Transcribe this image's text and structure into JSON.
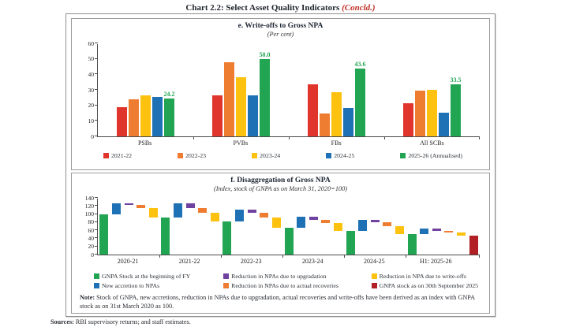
{
  "page": {
    "title": "Chart 2.2: Select Asset Quality Indicators",
    "title_suffix": "(Concld.)"
  },
  "note": {
    "label": "Note:",
    "text": " Stock of GNPA, new accretions, reduction in NPAs due to upgradation, actual recoveries and write-offs have been derived as an index with GNPA stock as on 31st March 2020 as 100."
  },
  "sources": {
    "label": "Sources:",
    "text": " RBI supervisory returns; and staff estimates."
  },
  "chart_data": [
    {
      "id": "write_offs_to_gross_npa",
      "type": "bar",
      "title": "e. Write-offs to Gross NPA",
      "subtitle": "(Per cent)",
      "categories": [
        "PSBs",
        "PVBs",
        "FBs",
        "All SCBs"
      ],
      "series": [
        {
          "name": "2021-22",
          "color": "#e0352c",
          "values": [
            19.0,
            26.5,
            33.6,
            21.5
          ]
        },
        {
          "name": "2022-23",
          "color": "#ee7d31",
          "values": [
            24.0,
            48.0,
            14.8,
            29.5
          ]
        },
        {
          "name": "2023-24",
          "color": "#fdc110",
          "values": [
            26.3,
            38.1,
            28.4,
            29.8
          ]
        },
        {
          "name": "2024-25",
          "color": "#1f71b5",
          "values": [
            25.4,
            26.7,
            18.1,
            15.2
          ]
        },
        {
          "name": "2025-26 (Annualised)",
          "color": "#22a552",
          "values": [
            24.2,
            50.0,
            43.6,
            33.5
          ],
          "show_labels": true,
          "labels": [
            "24.2",
            "50.0",
            "43.6",
            "33.5"
          ]
        }
      ],
      "ylim": [
        0,
        60
      ],
      "yticks": [
        0,
        10,
        20,
        30,
        40,
        50,
        60
      ],
      "grid": false,
      "legend_position": "bottom"
    },
    {
      "id": "disaggregation_of_gross_npa",
      "type": "waterfall",
      "title": "f. Disaggregation of Gross NPA",
      "subtitle": "(Index, stock of GNPA as on March 31, 2020=100)",
      "categories": [
        "2020-21",
        "2021-22",
        "2022-23",
        "2023-24",
        "2024-25",
        "H1: 2025-26"
      ],
      "segment_keys": [
        "begin",
        "accretion",
        "upgradation",
        "recoveries",
        "write_offs"
      ],
      "legend": [
        {
          "key": "begin",
          "label": "GNPA Stock at the beginning of FY",
          "color": "#22a552"
        },
        {
          "key": "accretion",
          "label": "New accretion to NPAs",
          "color": "#1f71b5"
        },
        {
          "key": "upgradation",
          "label": "Reduction in NPAs due to upgradation",
          "color": "#6f42a0"
        },
        {
          "key": "recoveries",
          "label": "Reduction in NPAs due to actual recoveries",
          "color": "#ee7d31"
        },
        {
          "key": "write_offs",
          "label": "Reduction in NPA due to write-offs",
          "color": "#fdc110"
        },
        {
          "key": "end_stock",
          "label": "GNPA stock as on 30th September 2025",
          "color": "#b02024"
        }
      ],
      "groups": [
        {
          "category": "2020-21",
          "begin": [
            0,
            100
          ],
          "accretion": [
            100,
            127
          ],
          "upgradation": [
            123,
            127
          ],
          "recoveries": [
            115,
            123
          ],
          "write_offs": [
            92,
            115
          ]
        },
        {
          "category": "2021-22",
          "begin": [
            0,
            92
          ],
          "accretion": [
            92,
            126
          ],
          "upgradation": [
            115,
            126
          ],
          "recoveries": [
            104,
            115
          ],
          "write_offs": [
            82,
            104
          ]
        },
        {
          "category": "2022-23",
          "begin": [
            0,
            82
          ],
          "accretion": [
            82,
            110
          ],
          "upgradation": [
            103,
            110
          ],
          "recoveries": [
            92,
            103
          ],
          "write_offs": [
            66,
            92
          ]
        },
        {
          "category": "2023-24",
          "begin": [
            0,
            66
          ],
          "accretion": [
            66,
            93
          ],
          "upgradation": [
            86,
            93
          ],
          "recoveries": [
            77,
            86
          ],
          "write_offs": [
            58,
            77
          ]
        },
        {
          "category": "2024-25",
          "begin": [
            0,
            58
          ],
          "accretion": [
            58,
            86
          ],
          "upgradation": [
            79,
            86
          ],
          "recoveries": [
            70,
            79
          ],
          "write_offs": [
            50,
            70
          ]
        },
        {
          "category": "H1: 2025-26",
          "begin": [
            0,
            50
          ],
          "accretion": [
            50,
            65
          ],
          "upgradation": [
            58,
            65
          ],
          "recoveries": [
            54,
            58
          ],
          "write_offs": [
            47,
            54
          ],
          "end_stock": [
            0,
            47
          ]
        }
      ],
      "ylim": [
        0,
        140
      ],
      "yticks": [
        0,
        20,
        40,
        60,
        80,
        100,
        120,
        140
      ],
      "grid": false,
      "legend_position": "bottom"
    }
  ]
}
